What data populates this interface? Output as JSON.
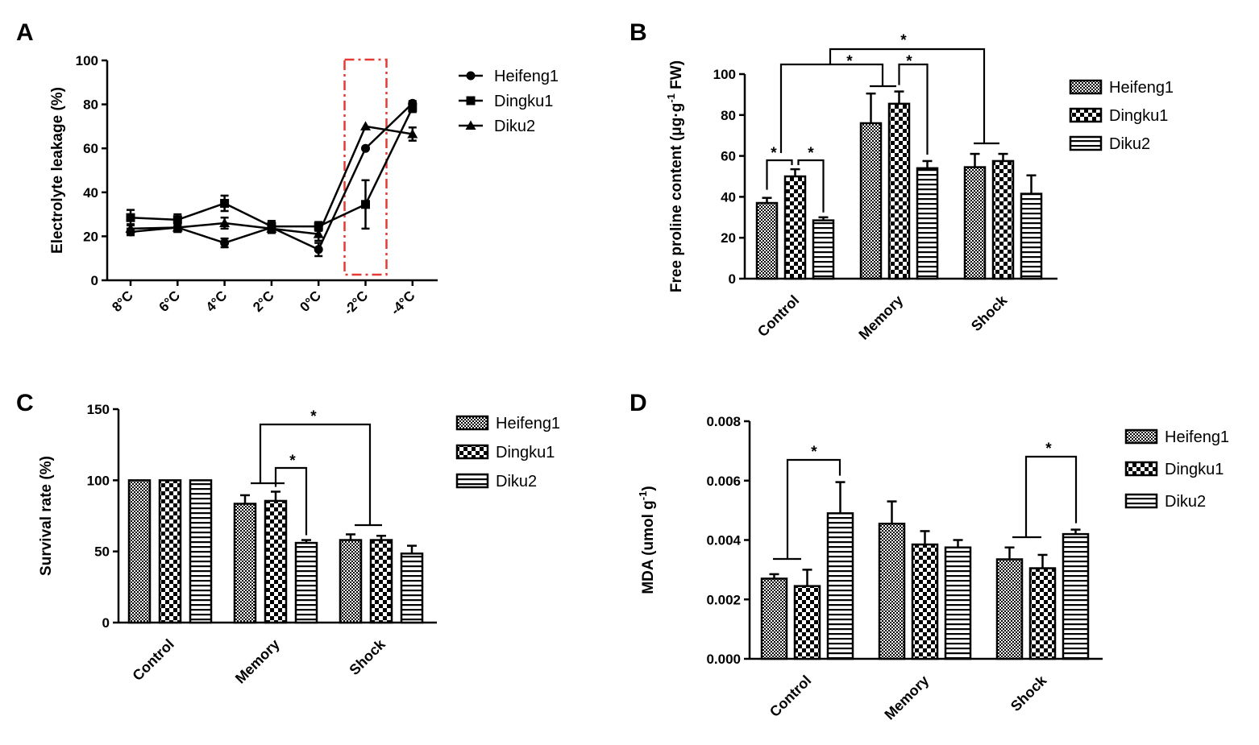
{
  "panels": {
    "A": "A",
    "B": "B",
    "C": "C",
    "D": "D"
  },
  "chart_data": [
    {
      "id": "A",
      "type": "line",
      "title": "",
      "xlabel": "",
      "ylabel": "Electrolyte leakage (%)",
      "ylim": [
        0,
        100
      ],
      "yticks": [
        "0",
        "20",
        "40",
        "60",
        "80",
        "100"
      ],
      "categories": [
        "8°C",
        "6°C",
        "4°C",
        "2°C",
        "0°C",
        "-2°C",
        "-4°C"
      ],
      "series": [
        {
          "name": "Heifeng1",
          "marker": "circle",
          "values": [
            22,
            24,
            17,
            24,
            14,
            60,
            80.5
          ],
          "errors": [
            1.5,
            2,
            2,
            2,
            3,
            0,
            1
          ]
        },
        {
          "name": "Dingku1",
          "marker": "square",
          "values": [
            28.5,
            27.5,
            35,
            24.5,
            24.5,
            34.5,
            78.5
          ],
          "errors": [
            3.5,
            2.5,
            3.5,
            2.5,
            2,
            11,
            2
          ]
        },
        {
          "name": "Diku2",
          "marker": "triangle",
          "values": [
            23.5,
            24,
            26,
            23.5,
            21,
            70,
            66.5
          ],
          "errors": [
            2,
            2,
            2.5,
            2,
            3,
            0,
            3
          ]
        }
      ],
      "highlight": {
        "category": "-2°C",
        "color": "#e53935",
        "style": "dash-dot"
      }
    },
    {
      "id": "B",
      "type": "bar",
      "ylabel_main": "Free proline content (μg·g",
      "ylabel_sup": "-1",
      "ylabel_end": " FW)",
      "ylim": [
        0,
        100
      ],
      "yticks": [
        "0",
        "20",
        "40",
        "60",
        "80",
        "100"
      ],
      "categories": [
        "Control",
        "Memory",
        "Shock"
      ],
      "series": [
        {
          "name": "Heifeng1",
          "pattern": "fine",
          "values": [
            37,
            76,
            54.5
          ],
          "errors": [
            2.5,
            14.5,
            6.5
          ]
        },
        {
          "name": "Dingku1",
          "pattern": "checker",
          "values": [
            50,
            85.5,
            57.5
          ],
          "errors": [
            3.5,
            6,
            3.5
          ]
        },
        {
          "name": "Diku2",
          "pattern": "hstripe",
          "values": [
            28.5,
            54,
            41.5
          ],
          "errors": [
            1.5,
            3.5,
            9
          ]
        }
      ],
      "significance": [
        "*",
        "*",
        "*",
        "*",
        "*"
      ]
    },
    {
      "id": "C",
      "type": "bar",
      "ylabel": "Survival rate (%)",
      "ylim": [
        0,
        150
      ],
      "yticks": [
        "0",
        "50",
        "100",
        "150"
      ],
      "categories": [
        "Control",
        "Memory",
        "Shock"
      ],
      "series": [
        {
          "name": "Heifeng1",
          "pattern": "fine",
          "values": [
            100,
            83.5,
            58
          ],
          "errors": [
            0,
            6,
            4
          ]
        },
        {
          "name": "Dingku1",
          "pattern": "checker",
          "values": [
            100,
            85.5,
            58
          ],
          "errors": [
            0,
            6.5,
            3
          ]
        },
        {
          "name": "Diku2",
          "pattern": "hstripe",
          "values": [
            100,
            56,
            48.5
          ],
          "errors": [
            0,
            2,
            5.5
          ]
        }
      ],
      "significance": [
        "*",
        "*"
      ]
    },
    {
      "id": "D",
      "type": "bar",
      "ylabel_main": "MDA (umol g",
      "ylabel_sup": "-1",
      "ylabel_end": ")",
      "ylim": [
        0,
        0.008
      ],
      "yticks": [
        "0.000",
        "0.002",
        "0.004",
        "0.006",
        "0.008"
      ],
      "categories": [
        "Control",
        "Memory",
        "Shock"
      ],
      "series": [
        {
          "name": "Heifeng1",
          "pattern": "fine",
          "values": [
            0.0027,
            0.00455,
            0.00335
          ],
          "errors": [
            0.00015,
            0.00075,
            0.0004
          ]
        },
        {
          "name": "Dingku1",
          "pattern": "checker",
          "values": [
            0.00245,
            0.00385,
            0.00305
          ],
          "errors": [
            0.00055,
            0.00045,
            0.00045
          ]
        },
        {
          "name": "Diku2",
          "pattern": "hstripe",
          "values": [
            0.0049,
            0.00375,
            0.0042
          ],
          "errors": [
            0.00105,
            0.00025,
            0.00015
          ]
        }
      ],
      "significance": [
        "*",
        "*"
      ]
    }
  ]
}
